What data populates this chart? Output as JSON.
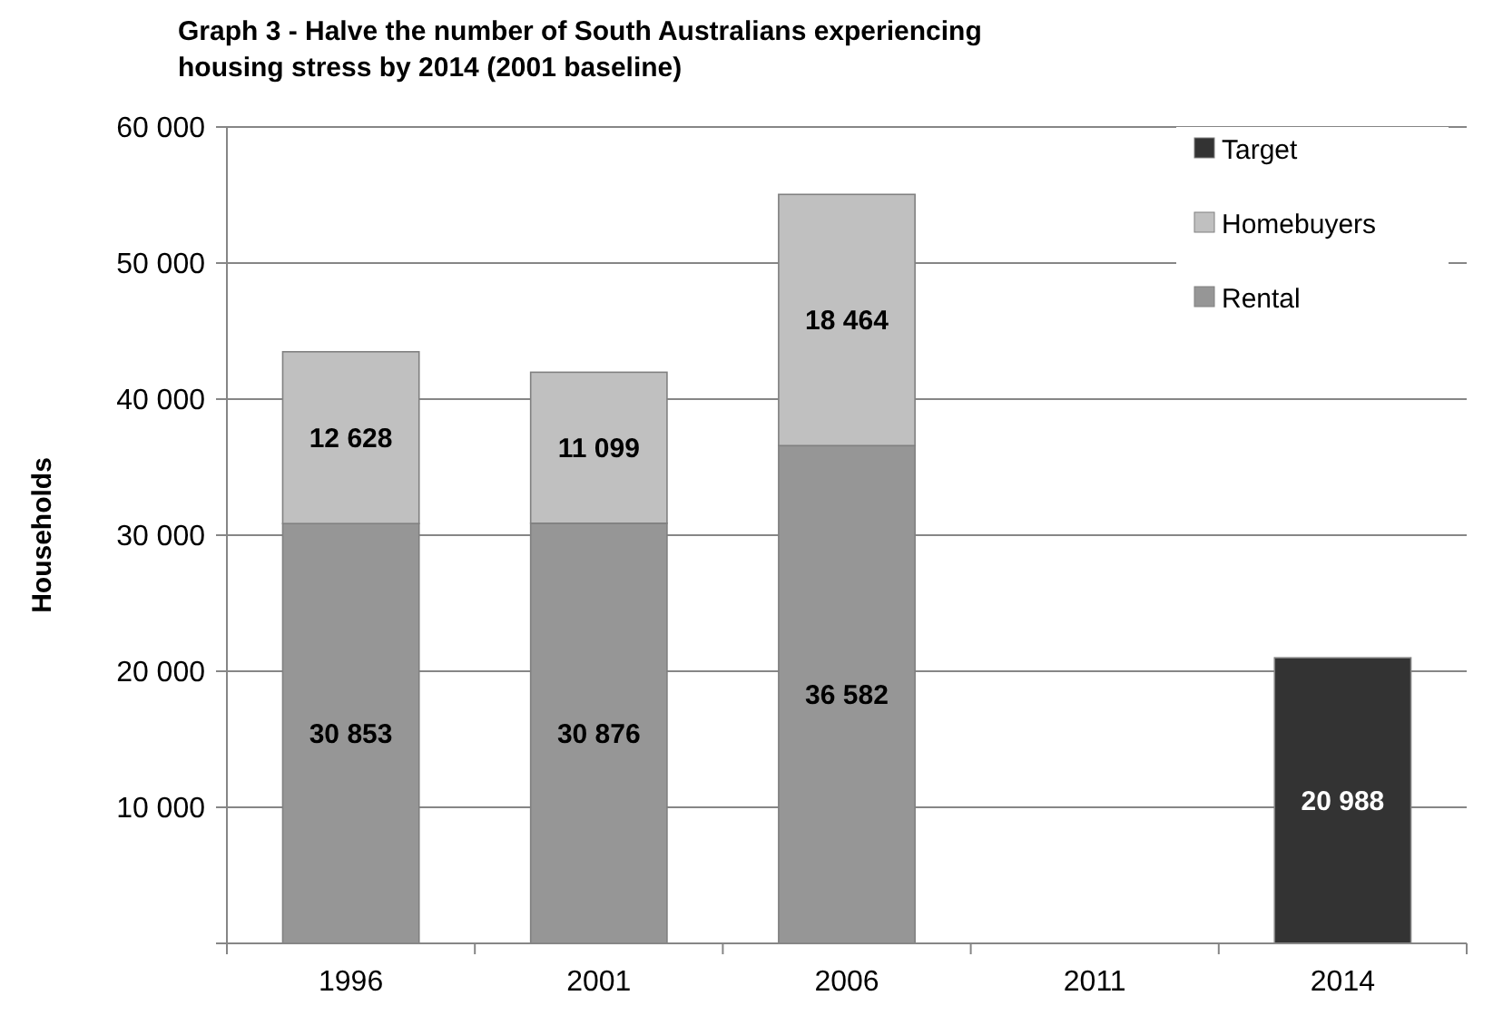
{
  "chart_data": {
    "type": "bar",
    "title": "Graph 3 - Halve the number of South Australians experiencing housing stress by 2014 (2001 baseline)",
    "ylabel": "Households",
    "categories": [
      "1996",
      "2001",
      "2006",
      "2011",
      "2014"
    ],
    "stacked": true,
    "data_labels": true,
    "grid": "y",
    "legend": "top right",
    "ylim": [
      0,
      60000
    ],
    "yticks": [
      {
        "value": 0,
        "label": null
      },
      {
        "value": 10000,
        "label": "10 000"
      },
      {
        "value": 20000,
        "label": "20 000"
      },
      {
        "value": 30000,
        "label": "30 000"
      },
      {
        "value": 40000,
        "label": "40 000"
      },
      {
        "value": 50000,
        "label": "50 000"
      },
      {
        "value": 60000,
        "label": "60 000"
      }
    ],
    "series": [
      {
        "name": "Rental",
        "color": "#969696",
        "values": [
          30853,
          30876,
          36582,
          null,
          null
        ]
      },
      {
        "name": "Homebuyers",
        "color": "#c0c0c0",
        "values": [
          12628,
          11099,
          18464,
          null,
          null
        ]
      },
      {
        "name": "Target",
        "color": "#333333",
        "values": [
          null,
          null,
          null,
          null,
          20988
        ]
      }
    ]
  }
}
